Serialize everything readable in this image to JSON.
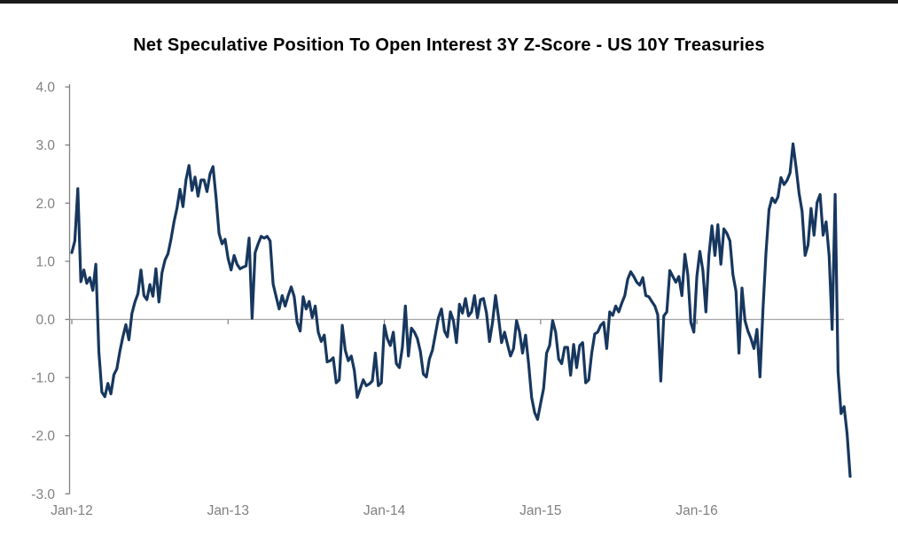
{
  "window": {
    "top_bar_color": "#1b1b1b",
    "background_color": "#ffffff"
  },
  "chart": {
    "title": "Net Speculative Position To Open Interest 3Y Z-Score - US 10Y Treasuries",
    "title_color": "#000000",
    "axis_color": "#808080",
    "tick_label_color": "#808080",
    "zero_line_color": "#a6a6a6",
    "line_color": "#17375E",
    "y_tick_labels": [
      "4.0",
      "3.0",
      "2.0",
      "1.0",
      "0.0",
      "-1.0",
      "-2.0",
      "-3.0"
    ],
    "x_tick_labels": [
      "Jan-12",
      "Jan-13",
      "Jan-14",
      "Jan-15",
      "Jan-16"
    ]
  },
  "chart_data": {
    "type": "line",
    "title": "Net Speculative Position To Open Interest 3Y Z-Score - US 10Y Treasuries",
    "xlabel": "",
    "ylabel": "",
    "x_start": "Jan-2012",
    "x_end": "Dec-2016",
    "frequency": "weekly",
    "x_axis_tick_labels": [
      "Jan-12",
      "Jan-13",
      "Jan-14",
      "Jan-15",
      "Jan-16"
    ],
    "ylim": [
      -3.0,
      4.0
    ],
    "y_tick_step": 1.0,
    "grid": "zero-line-only",
    "legend_position": "none",
    "series": [
      {
        "name": "Net Speculative Position to Open Interest 3Y Z-Score (US 10Y Treasuries)",
        "color": "#17375E",
        "values": [
          1.15,
          1.35,
          2.25,
          0.65,
          0.85,
          0.62,
          0.72,
          0.5,
          0.95,
          -0.55,
          -1.25,
          -1.33,
          -1.1,
          -1.28,
          -0.95,
          -0.85,
          -0.55,
          -0.3,
          -0.09,
          -0.35,
          0.1,
          0.3,
          0.44,
          0.85,
          0.41,
          0.34,
          0.6,
          0.4,
          0.87,
          0.3,
          0.8,
          1.02,
          1.13,
          1.38,
          1.68,
          1.91,
          2.24,
          1.94,
          2.4,
          2.65,
          2.22,
          2.45,
          2.12,
          2.4,
          2.4,
          2.2,
          2.5,
          2.63,
          2.1,
          1.48,
          1.3,
          1.38,
          1.05,
          0.85,
          1.1,
          0.95,
          0.87,
          0.9,
          0.92,
          1.4,
          0.02,
          1.15,
          1.3,
          1.43,
          1.4,
          1.43,
          1.35,
          0.61,
          0.39,
          0.18,
          0.41,
          0.23,
          0.41,
          0.56,
          0.39,
          -0.05,
          -0.2,
          0.39,
          0.18,
          0.31,
          0.03,
          0.23,
          -0.22,
          -0.38,
          -0.27,
          -0.73,
          -0.71,
          -0.66,
          -1.09,
          -1.04,
          -0.1,
          -0.53,
          -0.71,
          -0.63,
          -0.88,
          -1.34,
          -1.19,
          -1.04,
          -1.14,
          -1.11,
          -1.06,
          -0.58,
          -1.14,
          -1.09,
          -0.1,
          -0.33,
          -0.45,
          -0.22,
          -0.76,
          -0.83,
          -0.48,
          0.23,
          -0.63,
          -0.15,
          -0.22,
          -0.33,
          -0.55,
          -0.94,
          -0.99,
          -0.68,
          -0.53,
          -0.25,
          0.03,
          0.18,
          -0.2,
          -0.3,
          0.13,
          -0.02,
          -0.4,
          0.26,
          0.11,
          0.36,
          0.06,
          0.13,
          0.41,
          0.03,
          0.34,
          0.36,
          0.11,
          -0.38,
          -0.05,
          0.41,
          0.03,
          -0.4,
          -0.22,
          -0.43,
          -0.63,
          -0.5,
          -0.02,
          -0.22,
          -0.58,
          -0.27,
          -0.76,
          -1.34,
          -1.6,
          -1.72,
          -1.45,
          -1.19,
          -0.58,
          -0.45,
          -0.02,
          -0.22,
          -0.68,
          -0.76,
          -0.48,
          -0.48,
          -0.96,
          -0.43,
          -0.83,
          -0.45,
          -0.4,
          -1.09,
          -1.04,
          -0.58,
          -0.25,
          -0.22,
          -0.1,
          -0.05,
          -0.5,
          0.13,
          0.07,
          0.23,
          0.13,
          0.28,
          0.41,
          0.69,
          0.82,
          0.74,
          0.64,
          0.59,
          0.72,
          0.41,
          0.39,
          0.31,
          0.23,
          0.08,
          -1.06,
          0.06,
          0.13,
          0.84,
          0.74,
          0.64,
          0.74,
          0.41,
          1.12,
          0.77,
          -0.05,
          -0.22,
          0.74,
          1.17,
          0.84,
          0.13,
          1.1,
          1.61,
          1.1,
          1.63,
          0.95,
          1.56,
          1.48,
          1.35,
          0.77,
          0.49,
          -0.58,
          0.54,
          -0.02,
          -0.2,
          -0.33,
          -0.5,
          -0.17,
          -0.99,
          0.18,
          1.15,
          1.89,
          2.09,
          2.01,
          2.11,
          2.44,
          2.32,
          2.39,
          2.52,
          3.02,
          2.62,
          2.17,
          1.86,
          1.1,
          1.28,
          1.91,
          1.45,
          2.01,
          2.15,
          1.45,
          1.68,
          1.1,
          -0.17,
          2.15,
          -0.9,
          -1.62,
          -1.5,
          -1.97,
          -2.7
        ]
      }
    ]
  }
}
